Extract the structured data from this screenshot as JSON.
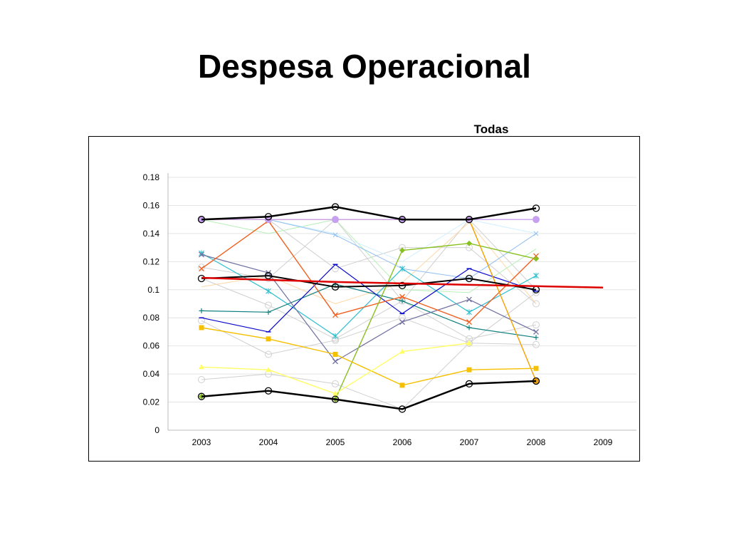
{
  "slide": {
    "title": "Despesa Operacional"
  },
  "chart_data": {
    "type": "line",
    "title": "Todas",
    "xlabel": "",
    "ylabel": "",
    "ylim": [
      0,
      0.18
    ],
    "yticks": [
      "0",
      "0.02",
      "0.04",
      "0.06",
      "0.08",
      "0.1",
      "0.12",
      "0.14",
      "0.16",
      "0.18"
    ],
    "categories": [
      "2003",
      "2004",
      "2005",
      "2006",
      "2007",
      "2008",
      "2009"
    ],
    "grid": true,
    "legend": "none",
    "series": [
      {
        "color": "#d0d0d0",
        "marker": "circle",
        "width": 1,
        "values": [
          0.15,
          0.15,
          0.115,
          0.13,
          0.13,
          0.09,
          null
        ]
      },
      {
        "color": "#d0d0d0",
        "marker": "circle",
        "width": 1,
        "values": [
          0.108,
          0.089,
          0.065,
          0.092,
          0.065,
          0.075,
          null
        ]
      },
      {
        "color": "#d0d0d0",
        "marker": "circle",
        "width": 1,
        "values": [
          0.078,
          0.054,
          0.064,
          0.08,
          0.062,
          0.061,
          null
        ]
      },
      {
        "color": "#d0d0d0",
        "marker": "circle",
        "width": 1,
        "values": [
          0.036,
          0.04,
          0.033,
          0.015,
          0.062,
          0.098,
          null
        ]
      },
      {
        "color": "#d0d0d0",
        "marker": "circle",
        "width": 1,
        "values": [
          0.116,
          0.108,
          0.15,
          0.092,
          0.15,
          0.1,
          null
        ]
      },
      {
        "color": "#ffd8a8",
        "marker": "none",
        "width": 1,
        "values": [
          0.102,
          0.11,
          0.09,
          0.105,
          0.148,
          0.09,
          null
        ]
      },
      {
        "color": "#b8f0b8",
        "marker": "none",
        "width": 1,
        "values": [
          0.15,
          0.14,
          0.15,
          0.1,
          0.098,
          0.129,
          null
        ]
      },
      {
        "color": "#d0f0ff",
        "marker": "none",
        "width": 1,
        "values": [
          0.15,
          0.15,
          0.14,
          0.12,
          0.15,
          0.14,
          null
        ]
      },
      {
        "color": "#8fbfef",
        "marker": "cross",
        "width": 1,
        "values": [
          0.15,
          0.15,
          0.139,
          0.115,
          0.108,
          0.14,
          null
        ]
      },
      {
        "color": "#2fbfcf",
        "marker": "star",
        "width": 1.2,
        "values": [
          0.126,
          0.099,
          0.067,
          0.115,
          0.084,
          0.11,
          null
        ]
      },
      {
        "color": "#0f7f7f",
        "marker": "plus",
        "width": 1.2,
        "values": [
          0.085,
          0.084,
          0.104,
          0.092,
          0.073,
          0.066,
          null
        ]
      },
      {
        "color": "#0a0acc",
        "marker": "dash",
        "width": 1.2,
        "values": [
          0.08,
          0.07,
          0.118,
          0.083,
          0.115,
          0.099,
          null
        ]
      },
      {
        "color": "#7070a0",
        "marker": "x",
        "width": 1.2,
        "values": [
          0.125,
          0.112,
          0.049,
          0.077,
          0.093,
          0.07,
          null
        ]
      },
      {
        "color": "#f06020",
        "marker": "x",
        "width": 1.4,
        "values": [
          0.115,
          0.149,
          0.082,
          0.095,
          0.077,
          0.124,
          null
        ]
      },
      {
        "color": "#88c020",
        "marker": "diamond",
        "width": 1.4,
        "values": [
          0.024,
          null,
          0.022,
          0.128,
          0.133,
          0.122,
          null
        ]
      },
      {
        "color": "#f5a000",
        "marker": "square",
        "width": 1.4,
        "values": [
          0.15,
          0.15,
          0.15,
          0.15,
          0.15,
          0.035,
          null
        ]
      },
      {
        "color": "#c8a0f0",
        "marker": "circle",
        "width": 1.4,
        "values": [
          0.15,
          0.15,
          0.15,
          0.15,
          0.15,
          0.15,
          null
        ]
      },
      {
        "color": "#f5c000",
        "marker": "square",
        "width": 1.4,
        "values": [
          0.073,
          0.065,
          0.054,
          0.032,
          0.043,
          0.044,
          null
        ]
      },
      {
        "color": "#ffff66",
        "marker": "triangle",
        "width": 1.4,
        "values": [
          0.045,
          0.043,
          0.026,
          0.056,
          0.062,
          null,
          null
        ]
      },
      {
        "color": "#000000",
        "marker": "circle",
        "width": 2.5,
        "values": [
          0.15,
          0.152,
          0.159,
          0.15,
          0.15,
          0.158,
          null
        ]
      },
      {
        "color": "#000000",
        "marker": "circle",
        "width": 2,
        "values": [
          0.108,
          0.11,
          0.102,
          0.103,
          0.108,
          0.1,
          null
        ]
      },
      {
        "color": "#000000",
        "marker": "circle",
        "width": 2.5,
        "values": [
          0.024,
          0.028,
          0.022,
          0.015,
          0.033,
          0.035,
          null
        ]
      },
      {
        "color": "#dd0000",
        "marker": "none",
        "width": 2.5,
        "values": [
          0.1085,
          0.107,
          0.1055,
          0.1045,
          0.1035,
          0.1025,
          0.1015
        ]
      }
    ]
  }
}
